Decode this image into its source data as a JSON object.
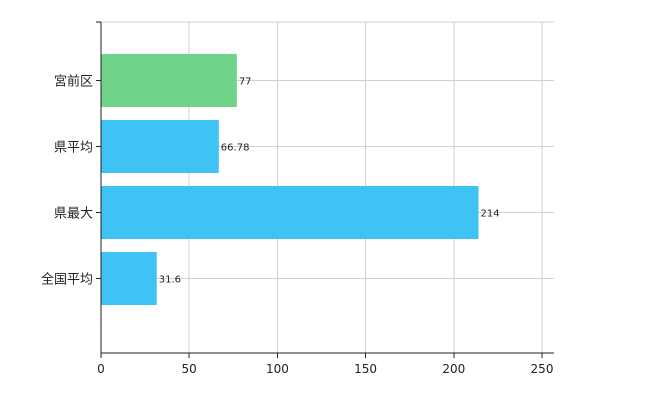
{
  "chart_data": {
    "type": "bar",
    "orientation": "horizontal",
    "categories": [
      "宮前区",
      "県平均",
      "県最大",
      "全国平均"
    ],
    "values": [
      77,
      66.78,
      214,
      31.6
    ],
    "value_labels": [
      "77",
      "66.78",
      "214",
      "31.6"
    ],
    "highlight_index": 0,
    "xlim": [
      0,
      250
    ],
    "xticks": [
      0,
      50,
      100,
      150,
      200,
      250
    ],
    "xtick_labels": [
      "0",
      "50",
      "100",
      "150",
      "200",
      "250"
    ],
    "grid": true,
    "title": "",
    "xlabel": "",
    "ylabel": ""
  },
  "colors": {
    "highlight": "#6fd38a",
    "default": "#3ec3f4",
    "grid": "#d0d0d0",
    "axis": "#222222"
  }
}
